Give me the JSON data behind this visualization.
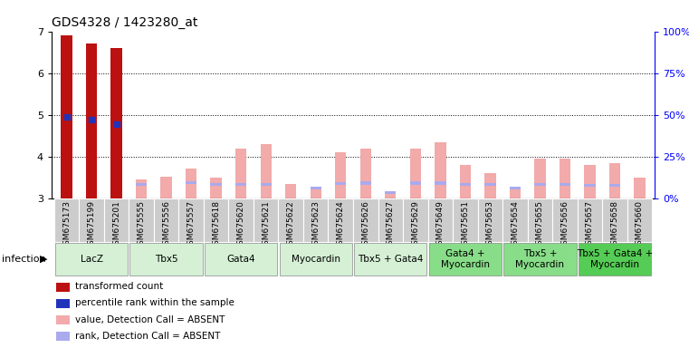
{
  "title": "GDS4328 / 1423280_at",
  "samples": [
    "GSM675173",
    "GSM675199",
    "GSM675201",
    "GSM675555",
    "GSM675556",
    "GSM675557",
    "GSM675618",
    "GSM675620",
    "GSM675621",
    "GSM675622",
    "GSM675623",
    "GSM675624",
    "GSM675626",
    "GSM675627",
    "GSM675629",
    "GSM675649",
    "GSM675651",
    "GSM675653",
    "GSM675654",
    "GSM675655",
    "GSM675656",
    "GSM675657",
    "GSM675658",
    "GSM675660"
  ],
  "groups": [
    {
      "label": "LacZ",
      "start": 0,
      "end": 3,
      "color": "#d5f0d5"
    },
    {
      "label": "Tbx5",
      "start": 3,
      "end": 6,
      "color": "#d5f0d5"
    },
    {
      "label": "Gata4",
      "start": 6,
      "end": 9,
      "color": "#d5f0d5"
    },
    {
      "label": "Myocardin",
      "start": 9,
      "end": 12,
      "color": "#d5f0d5"
    },
    {
      "label": "Tbx5 + Gata4",
      "start": 12,
      "end": 15,
      "color": "#d5f0d5"
    },
    {
      "label": "Gata4 +\nMyocardin",
      "start": 15,
      "end": 18,
      "color": "#88dd88"
    },
    {
      "label": "Tbx5 +\nMyocardin",
      "start": 18,
      "end": 21,
      "color": "#88dd88"
    },
    {
      "label": "Tbx5 + Gata4 +\nMyocardin",
      "start": 21,
      "end": 24,
      "color": "#55cc55"
    }
  ],
  "red_bars": [
    6.9,
    6.7,
    6.6,
    0,
    0,
    0,
    0,
    0,
    0,
    0,
    0,
    0,
    0,
    0,
    0,
    0,
    0,
    0,
    0,
    0,
    0,
    0,
    0,
    0
  ],
  "pink_bars": [
    0,
    0,
    0,
    3.45,
    3.52,
    3.72,
    3.5,
    4.2,
    4.3,
    3.35,
    3.28,
    4.1,
    4.2,
    3.15,
    4.2,
    4.35,
    3.8,
    3.6,
    3.28,
    3.95,
    3.95,
    3.8,
    3.85,
    3.5
  ],
  "blue_dots_y": [
    4.95,
    4.88,
    4.77,
    0,
    0,
    0,
    0,
    0,
    0,
    0,
    0,
    0,
    0,
    0,
    0,
    0,
    0,
    0,
    0,
    0,
    0,
    0,
    0,
    0
  ],
  "blue_rank_bars": [
    0,
    0,
    0,
    3.3,
    0,
    3.35,
    3.3,
    3.3,
    3.3,
    0,
    3.22,
    3.32,
    3.33,
    3.1,
    3.33,
    3.33,
    3.3,
    3.3,
    3.22,
    3.3,
    3.3,
    3.28,
    3.28,
    0
  ],
  "ylim": [
    3.0,
    7.0
  ],
  "yticks": [
    3,
    4,
    5,
    6,
    7
  ],
  "right_ylabels": [
    "0%",
    "25%",
    "50%",
    "75%",
    "100%"
  ],
  "right_yticks_pct": [
    0,
    25,
    50,
    75,
    100
  ],
  "bar_width": 0.45,
  "red_color": "#bb1111",
  "pink_color": "#f2aaaa",
  "blue_dot_color": "#2233bb",
  "blue_rank_color": "#aaaaee",
  "dot_color": "#000088",
  "legend_items": [
    {
      "color": "#bb1111",
      "label": "transformed count"
    },
    {
      "color": "#2233bb",
      "label": "percentile rank within the sample"
    },
    {
      "color": "#f2aaaa",
      "label": "value, Detection Call = ABSENT"
    },
    {
      "color": "#aaaaee",
      "label": "rank, Detection Call = ABSENT"
    }
  ]
}
